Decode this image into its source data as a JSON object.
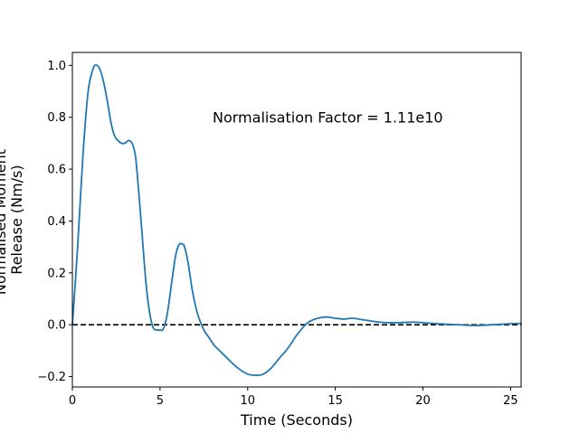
{
  "chart_data": {
    "type": "line",
    "title": "",
    "xlabel": "Time (Seconds)",
    "ylabel_lines": [
      "Normalised Moment",
      "Release (Nm/s)"
    ],
    "xlim": [
      0,
      25.6
    ],
    "ylim": [
      -0.24,
      1.05
    ],
    "xticks": [
      0,
      5,
      10,
      15,
      20,
      25
    ],
    "yticks": [
      -0.2,
      0.0,
      0.2,
      0.4,
      0.6,
      0.8,
      1.0
    ],
    "xtick_labels": [
      "0",
      "5",
      "10",
      "15",
      "20",
      "25"
    ],
    "ytick_labels": [
      "−0.2",
      "0.0",
      "0.2",
      "0.4",
      "0.6",
      "0.8",
      "1.0"
    ],
    "grid": false,
    "annotation": {
      "text": "Normalisation Factor = 1.11e10",
      "x": 8.0,
      "y": 0.8
    },
    "reference_line": {
      "y": 0.0,
      "style": "dashed",
      "color": "#000000"
    },
    "series": [
      {
        "color": "#1f77b4",
        "x": [
          0,
          0.3,
          0.6,
          0.9,
          1.2,
          1.4,
          1.6,
          1.8,
          2.0,
          2.2,
          2.4,
          2.6,
          2.8,
          3.0,
          3.2,
          3.4,
          3.6,
          3.8,
          4.0,
          4.2,
          4.4,
          4.6,
          4.8,
          5.0,
          5.1,
          5.2,
          5.35,
          5.5,
          5.7,
          5.9,
          6.1,
          6.3,
          6.4,
          6.6,
          6.8,
          7.0,
          7.2,
          7.5,
          7.8,
          8.1,
          8.4,
          9.0,
          9.5,
          10.0,
          10.5,
          10.9,
          11.3,
          11.8,
          12.3,
          12.8,
          13.3,
          13.6,
          14.0,
          14.5,
          15.0,
          15.5,
          16.0,
          16.5,
          17.0,
          17.5,
          18.0,
          18.5,
          19.0,
          19.5,
          20.0,
          21.0,
          22.0,
          23.0,
          24.0,
          25.0,
          25.6
        ],
        "y": [
          0.0,
          0.3,
          0.65,
          0.9,
          0.99,
          1.0,
          0.98,
          0.93,
          0.86,
          0.78,
          0.73,
          0.71,
          0.7,
          0.7,
          0.71,
          0.7,
          0.65,
          0.5,
          0.33,
          0.16,
          0.05,
          -0.01,
          -0.02,
          -0.02,
          -0.022,
          -0.015,
          0.02,
          0.08,
          0.18,
          0.27,
          0.31,
          0.31,
          0.3,
          0.24,
          0.15,
          0.08,
          0.03,
          -0.02,
          -0.05,
          -0.08,
          -0.1,
          -0.14,
          -0.17,
          -0.19,
          -0.195,
          -0.19,
          -0.17,
          -0.13,
          -0.09,
          -0.04,
          0.0,
          0.015,
          0.025,
          0.03,
          0.025,
          0.022,
          0.025,
          0.02,
          0.015,
          0.01,
          0.008,
          0.008,
          0.009,
          0.01,
          0.008,
          0.003,
          0.0,
          -0.003,
          0.0,
          0.004,
          0.005
        ]
      }
    ]
  }
}
